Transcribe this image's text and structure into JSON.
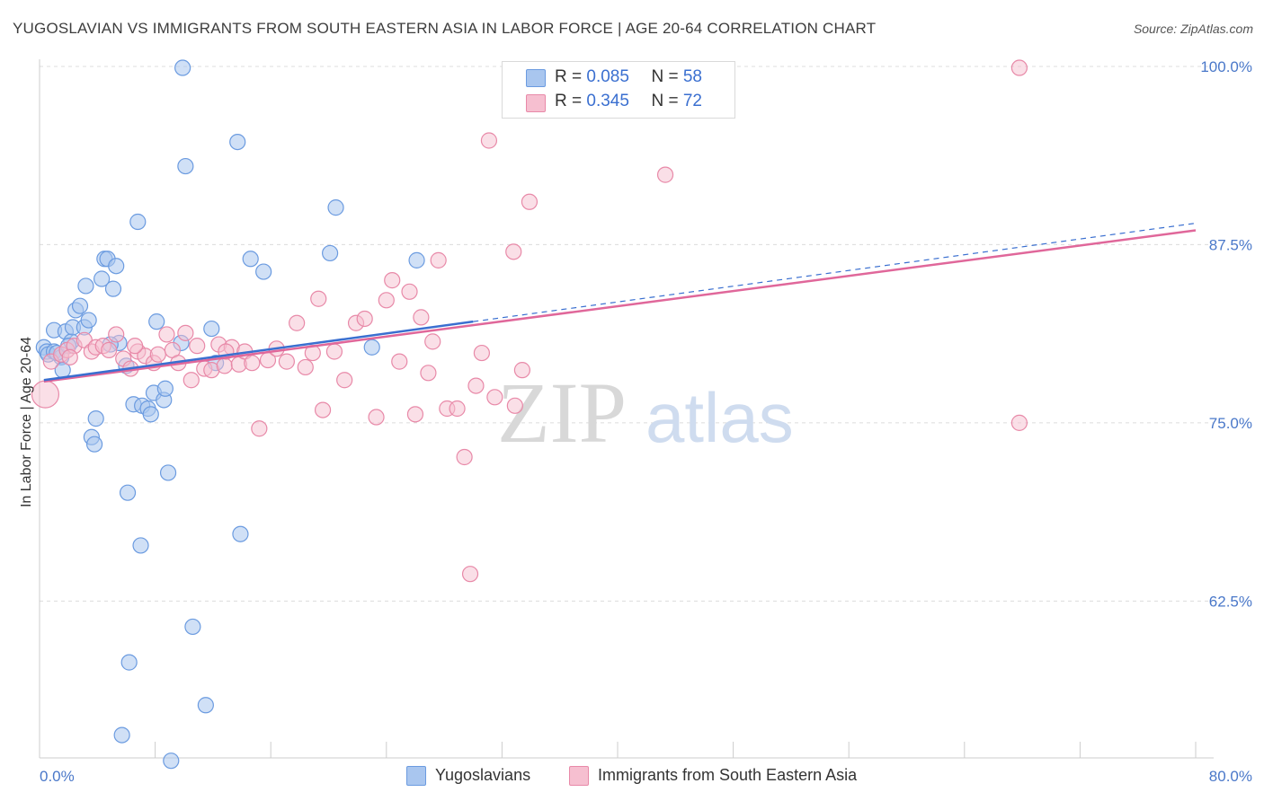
{
  "header": {
    "title": "YUGOSLAVIAN VS IMMIGRANTS FROM SOUTH EASTERN ASIA IN LABOR FORCE | AGE 20-64 CORRELATION CHART",
    "source": "Source: ZipAtlas.com"
  },
  "legend_top": {
    "rows": [
      {
        "r_label": "R = ",
        "r_value": "0.085",
        "n_label": "N = ",
        "n_value": "58"
      },
      {
        "r_label": "R = ",
        "r_value": "0.345",
        "n_label": "N = ",
        "n_value": "72"
      }
    ]
  },
  "legend_bottom": {
    "series1": "Yugoslavians",
    "series2": "Immigrants from South Eastern Asia"
  },
  "watermark": {
    "zip": "ZIP",
    "atlas": "atlas"
  },
  "colors": {
    "series1_fill": "#a9c6ef",
    "series1_stroke": "#6b9be0",
    "series1_line": "#3a6fd0",
    "series2_fill": "#f6bfd0",
    "series2_stroke": "#e889a8",
    "series2_line": "#e0679a",
    "tick_text": "#4a78c9",
    "grid": "#dcdcdc"
  },
  "chart_data": {
    "type": "scatter",
    "xlabel": "",
    "ylabel": "In Labor Force | Age 20-64",
    "xlim": [
      0,
      80
    ],
    "ylim": [
      51.5,
      100.5
    ],
    "x_tick_labels": [
      "0.0%",
      "80.0%"
    ],
    "y_ticks": [
      62.5,
      75.0,
      87.5,
      100.0
    ],
    "y_tick_labels": [
      "62.5%",
      "75.0%",
      "87.5%",
      "100.0%"
    ],
    "grid": true,
    "legend_placement": "top-center",
    "series": [
      {
        "name": "Yugoslavians",
        "r": 0.085,
        "n": 58,
        "trend": {
          "x": [
            0.3,
            30.0
          ],
          "y": [
            78.0,
            82.1
          ],
          "extrapolated_to": [
            80.0,
            89.0
          ]
        },
        "points": [
          [
            0.3,
            80.3
          ],
          [
            0.5,
            80.0
          ],
          [
            0.6,
            79.8
          ],
          [
            1.0,
            80.0
          ],
          [
            1.5,
            79.6
          ],
          [
            1.6,
            78.7
          ],
          [
            1.0,
            81.5
          ],
          [
            1.8,
            81.4
          ],
          [
            2.2,
            80.7
          ],
          [
            2.3,
            81.7
          ],
          [
            2.5,
            82.9
          ],
          [
            2.8,
            83.2
          ],
          [
            3.1,
            81.7
          ],
          [
            3.2,
            84.6
          ],
          [
            3.4,
            82.2
          ],
          [
            3.6,
            74.0
          ],
          [
            3.8,
            73.5
          ],
          [
            3.9,
            75.3
          ],
          [
            4.3,
            85.1
          ],
          [
            4.5,
            86.5
          ],
          [
            4.7,
            86.5
          ],
          [
            5.1,
            84.4
          ],
          [
            5.3,
            86.0
          ],
          [
            5.5,
            80.6
          ],
          [
            6.1,
            70.1
          ],
          [
            6.2,
            58.2
          ],
          [
            6.5,
            76.3
          ],
          [
            6.8,
            89.1
          ],
          [
            7.0,
            66.4
          ],
          [
            7.1,
            76.2
          ],
          [
            7.5,
            76.0
          ],
          [
            7.7,
            75.6
          ],
          [
            7.9,
            77.1
          ],
          [
            8.1,
            82.1
          ],
          [
            8.6,
            76.6
          ],
          [
            8.7,
            77.4
          ],
          [
            8.9,
            71.5
          ],
          [
            9.1,
            51.3
          ],
          [
            9.8,
            80.6
          ],
          [
            9.9,
            99.9
          ],
          [
            10.1,
            93.0
          ],
          [
            10.6,
            60.7
          ],
          [
            11.5,
            55.2
          ],
          [
            11.9,
            81.6
          ],
          [
            12.2,
            79.2
          ],
          [
            13.7,
            94.7
          ],
          [
            13.9,
            67.2
          ],
          [
            14.6,
            86.5
          ],
          [
            15.5,
            85.6
          ],
          [
            20.1,
            86.9
          ],
          [
            20.5,
            90.1
          ],
          [
            23.0,
            80.3
          ],
          [
            26.1,
            86.4
          ],
          [
            5.7,
            53.1
          ],
          [
            1.2,
            79.9
          ],
          [
            2.0,
            80.4
          ],
          [
            4.9,
            80.5
          ],
          [
            6.0,
            79.0
          ]
        ]
      },
      {
        "name": "Immigrants from South Eastern Asia",
        "r": 0.345,
        "n": 72,
        "trend": {
          "x": [
            0.3,
            80.0
          ],
          "y": [
            77.9,
            88.5
          ]
        },
        "points": [
          [
            0.4,
            77.0
          ],
          [
            0.8,
            79.3
          ],
          [
            1.5,
            79.8
          ],
          [
            1.9,
            80.1
          ],
          [
            2.4,
            80.4
          ],
          [
            3.1,
            80.8
          ],
          [
            3.6,
            80.0
          ],
          [
            3.9,
            80.3
          ],
          [
            4.4,
            80.4
          ],
          [
            4.8,
            80.1
          ],
          [
            5.3,
            81.2
          ],
          [
            5.8,
            79.5
          ],
          [
            6.3,
            78.8
          ],
          [
            6.8,
            80.0
          ],
          [
            7.3,
            79.7
          ],
          [
            7.9,
            79.2
          ],
          [
            8.2,
            79.8
          ],
          [
            8.8,
            81.2
          ],
          [
            9.2,
            80.1
          ],
          [
            9.6,
            79.2
          ],
          [
            10.1,
            81.3
          ],
          [
            10.5,
            78.0
          ],
          [
            10.9,
            80.4
          ],
          [
            11.4,
            78.8
          ],
          [
            11.9,
            78.7
          ],
          [
            12.4,
            80.5
          ],
          [
            12.8,
            79.0
          ],
          [
            13.3,
            80.3
          ],
          [
            13.8,
            79.1
          ],
          [
            14.2,
            80.0
          ],
          [
            14.7,
            79.2
          ],
          [
            15.2,
            74.6
          ],
          [
            15.8,
            79.4
          ],
          [
            16.4,
            80.2
          ],
          [
            17.1,
            79.3
          ],
          [
            17.8,
            82.0
          ],
          [
            18.4,
            78.9
          ],
          [
            18.9,
            79.9
          ],
          [
            19.3,
            83.7
          ],
          [
            19.6,
            75.9
          ],
          [
            20.4,
            80.0
          ],
          [
            21.1,
            78.0
          ],
          [
            21.9,
            82.0
          ],
          [
            22.5,
            82.3
          ],
          [
            23.3,
            75.4
          ],
          [
            24.0,
            83.6
          ],
          [
            24.4,
            85.0
          ],
          [
            24.9,
            79.3
          ],
          [
            25.6,
            84.2
          ],
          [
            26.0,
            75.6
          ],
          [
            26.4,
            82.4
          ],
          [
            26.9,
            78.5
          ],
          [
            27.2,
            80.7
          ],
          [
            27.6,
            86.4
          ],
          [
            28.2,
            76.0
          ],
          [
            28.9,
            76.0
          ],
          [
            29.4,
            72.6
          ],
          [
            29.8,
            64.4
          ],
          [
            30.2,
            77.6
          ],
          [
            30.6,
            79.9
          ],
          [
            31.1,
            94.8
          ],
          [
            31.5,
            76.8
          ],
          [
            32.8,
            87.0
          ],
          [
            32.9,
            76.2
          ],
          [
            33.4,
            78.7
          ],
          [
            33.9,
            90.5
          ],
          [
            43.3,
            92.4
          ],
          [
            67.8,
            99.9
          ],
          [
            67.8,
            75.0
          ],
          [
            2.1,
            79.6
          ],
          [
            6.6,
            80.4
          ],
          [
            12.9,
            80.0
          ]
        ]
      }
    ]
  }
}
